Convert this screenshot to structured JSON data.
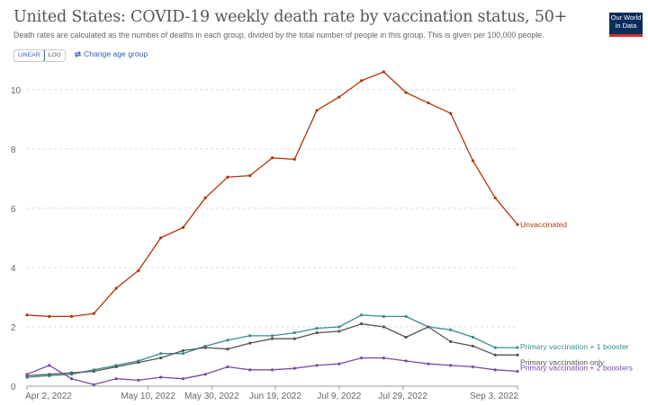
{
  "header": {
    "title": "United States: COVID-19 weekly death rate by vaccination status, 50+",
    "subtitle": "Death rates are calculated as the number of deaths in each group, divided by the total number of people in this group. This is given per 100,000 people.",
    "logo_lines": [
      "Our World",
      "in Data"
    ]
  },
  "controls": {
    "scale_options": [
      "LINEAR",
      "LOG"
    ],
    "active_scale": "LINEAR",
    "age_group_label": "Change age group"
  },
  "colors": {
    "unvaccinated": "#b13507",
    "booster1": "#3c8c8c",
    "primary": "#555555",
    "booster2": "#7a4aa6",
    "grid": "#dddddd",
    "logo_bg": "#0d2c5e",
    "link": "#3360a9"
  },
  "chart_data": {
    "type": "line",
    "ylim": [
      0,
      10.6
    ],
    "yticks": [
      0,
      2,
      4,
      6,
      8,
      10
    ],
    "grid": "horizontal dashed",
    "x": [
      "2022-04-02",
      "2022-04-09",
      "2022-04-16",
      "2022-04-23",
      "2022-04-30",
      "2022-05-07",
      "2022-05-14",
      "2022-05-21",
      "2022-05-28",
      "2022-06-04",
      "2022-06-11",
      "2022-06-18",
      "2022-06-25",
      "2022-07-02",
      "2022-07-09",
      "2022-07-16",
      "2022-07-23",
      "2022-07-30",
      "2022-08-06",
      "2022-08-13",
      "2022-08-20",
      "2022-08-27",
      "2022-09-03"
    ],
    "xtick_labels": [
      {
        "label": "Apr 2, 2022",
        "index": 0
      },
      {
        "label": "May 10, 2022",
        "index": 5.43
      },
      {
        "label": "May 30, 2022",
        "index": 8.29
      },
      {
        "label": "Jun 19, 2022",
        "index": 11.14
      },
      {
        "label": "Jul 9, 2022",
        "index": 14
      },
      {
        "label": "Jul 29, 2022",
        "index": 16.86
      },
      {
        "label": "Sep 3, 2022",
        "index": 22
      }
    ],
    "series": [
      {
        "name": "Unvaccinated",
        "color_key": "unvaccinated",
        "values": [
          2.4,
          2.35,
          2.35,
          2.45,
          3.3,
          3.9,
          5.0,
          5.35,
          6.35,
          7.05,
          7.1,
          7.7,
          7.65,
          9.3,
          9.75,
          10.3,
          10.6,
          9.9,
          9.55,
          9.2,
          7.6,
          6.35,
          5.45
        ]
      },
      {
        "name": "Primary vaccination + 1 booster",
        "color_key": "booster1",
        "values": [
          0.3,
          0.35,
          0.4,
          0.55,
          0.7,
          0.85,
          1.1,
          1.1,
          1.35,
          1.55,
          1.7,
          1.7,
          1.8,
          1.95,
          2.0,
          2.4,
          2.35,
          2.35,
          2.0,
          1.9,
          1.65,
          1.3,
          1.3
        ]
      },
      {
        "name": "Primary vaccination only",
        "color_key": "primary",
        "values": [
          0.35,
          0.4,
          0.45,
          0.5,
          0.65,
          0.8,
          0.95,
          1.2,
          1.3,
          1.25,
          1.45,
          1.6,
          1.6,
          1.8,
          1.85,
          2.1,
          2.0,
          1.65,
          2.0,
          1.5,
          1.35,
          1.05,
          1.05
        ]
      },
      {
        "name": "Primary vaccination + 2 boosters",
        "color_key": "booster2",
        "values": [
          0.4,
          0.7,
          0.25,
          0.05,
          0.25,
          0.2,
          0.3,
          0.25,
          0.4,
          0.65,
          0.55,
          0.55,
          0.6,
          0.7,
          0.75,
          0.95,
          0.95,
          0.85,
          0.75,
          0.7,
          0.65,
          0.55,
          0.5
        ]
      }
    ]
  }
}
